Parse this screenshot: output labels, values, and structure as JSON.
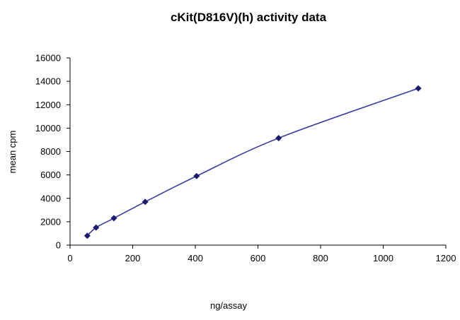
{
  "chart_data": {
    "type": "scatter",
    "title": "cKit(D816V)(h) activity data",
    "xlabel": "ng/assay",
    "ylabel": "mean cpm",
    "xlim": [
      0,
      1200
    ],
    "ylim": [
      0,
      16000
    ],
    "x_ticks": [
      0,
      200,
      400,
      600,
      800,
      1000,
      1200
    ],
    "y_ticks": [
      0,
      2000,
      4000,
      6000,
      8000,
      10000,
      12000,
      14000,
      16000
    ],
    "grid": false,
    "legend": "none",
    "series": [
      {
        "x": [
          55,
          83,
          140,
          240,
          404,
          666,
          1112
        ],
        "y": [
          800,
          1500,
          2300,
          3700,
          5900,
          9150,
          13400
        ],
        "marker": "diamond",
        "line": "smooth",
        "color": "#1a1a6e",
        "line_color": "#3a3aa0"
      }
    ]
  }
}
